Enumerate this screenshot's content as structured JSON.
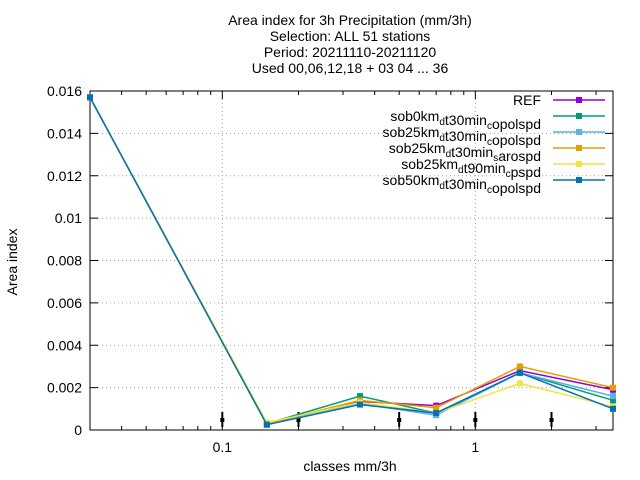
{
  "chart_data": {
    "type": "line",
    "title_lines": [
      "Area index  for 3h Precipitation (mm/3h)",
      "Selection: ALL      51 stations",
      "Period: 20211110-20211120",
      "Used 00,06,12,18 + 03 04 ... 36"
    ],
    "xlabel": "classes mm/3h",
    "ylabel": "Area index",
    "x_scale": "log",
    "xlim": [
      0.03,
      3.5
    ],
    "ylim": [
      0,
      0.016
    ],
    "yticks": [
      "0",
      "0.002",
      "0.004",
      "0.006",
      "0.008",
      "0.01",
      "0.012",
      "0.014",
      "0.016"
    ],
    "ytick_values": [
      0,
      0.002,
      0.004,
      0.006,
      0.008,
      0.01,
      0.012,
      0.014,
      0.016
    ],
    "xticks": [
      "0.1",
      "1"
    ],
    "xtick_values": [
      0.1,
      1
    ],
    "grid": true,
    "legend_position": "top-right",
    "x": [
      0.03,
      0.15,
      0.35,
      0.7,
      1.5,
      3.5
    ],
    "series": [
      {
        "name": "REF",
        "name_sub": "",
        "name_tail": "",
        "color": "#9400d3",
        "values": [
          0.0157,
          0.0003,
          0.00135,
          0.00115,
          0.0028,
          0.0019
        ]
      },
      {
        "name": "sob0km",
        "name_sub": "d",
        "name_tail": "t30min",
        "name_sub2": "c",
        "name_tail2": "opolspd",
        "color": "#009e73",
        "values": [
          0.0157,
          0.0003,
          0.0016,
          0.0008,
          0.0027,
          0.0014
        ]
      },
      {
        "name": "sob25km",
        "name_sub": "d",
        "name_tail": "t30min",
        "name_sub2": "c",
        "name_tail2": "opolspd",
        "color": "#56b4e9",
        "values": [
          0.0157,
          0.00025,
          0.00125,
          0.0007,
          0.0027,
          0.0016
        ]
      },
      {
        "name": "sob25km",
        "name_sub": "d",
        "name_tail": "t30min",
        "name_sub2": "s",
        "name_tail2": "arospd",
        "color": "#e69f00",
        "values": [
          0.0157,
          0.0003,
          0.0014,
          0.00105,
          0.003,
          0.002
        ]
      },
      {
        "name": "sob25km",
        "name_sub": "d",
        "name_tail": "t90min",
        "name_sub2": "c",
        "name_tail2": "pspd",
        "color": "#f0e442",
        "values": [
          0.0157,
          0.00035,
          0.0013,
          0.0008,
          0.0022,
          0.0011
        ]
      },
      {
        "name": "sob50km",
        "name_sub": "d",
        "name_tail": "t30min",
        "name_sub2": "c",
        "name_tail2": "opolspd",
        "color": "#0072b2",
        "values": [
          0.0157,
          0.00025,
          0.0012,
          0.0008,
          0.0027,
          0.001
        ]
      }
    ],
    "threshold_markers_x": [
      0.1,
      0.2,
      0.5,
      1,
      2
    ]
  }
}
